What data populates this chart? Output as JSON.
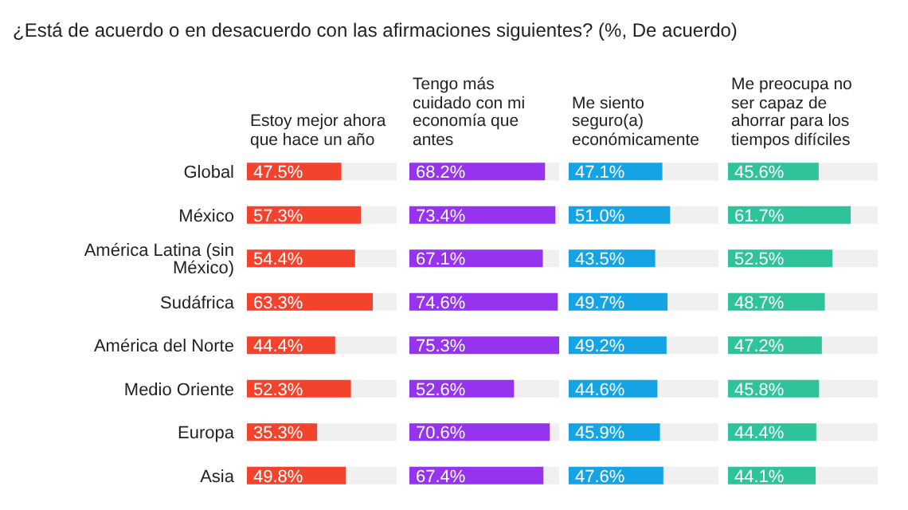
{
  "chart_data": [
    {
      "type": "bar",
      "orientation": "horizontal",
      "subtitle": "¿Está de acuerdo o en desacuerdo con las afirmaciones siguientes? (%, De acuerdo)",
      "title": "Estoy mejor ahora que hace un año",
      "categories": [
        "Global",
        "México",
        "América Latina (sin México)",
        "Sudáfrica",
        "América del Norte",
        "Medio Oriente",
        "Europa",
        "Asia"
      ],
      "values": [
        47.5,
        57.3,
        54.4,
        63.3,
        44.4,
        52.3,
        35.3,
        49.8
      ],
      "value_labels": [
        "47.5%",
        "57.3%",
        "54.4%",
        "63.3%",
        "44.4%",
        "52.3%",
        "35.3%",
        "49.8%"
      ],
      "color": "#f4432c",
      "tick_labels": "y"
    },
    {
      "type": "bar",
      "orientation": "horizontal",
      "title": "Tengo más cuidado con mi economía que antes",
      "values": [
        68.2,
        73.4,
        67.1,
        74.6,
        75.3,
        52.6,
        70.6,
        67.4
      ],
      "value_labels": [
        "68.2%",
        "73.4%",
        "67.1%",
        "74.6%",
        "75.3%",
        "52.6%",
        "70.6%",
        "67.4%"
      ],
      "color": "#9533ef",
      "tick_labels": false
    },
    {
      "type": "bar",
      "orientation": "horizontal",
      "title": "Me siento seguro(a) económicamente",
      "values": [
        47.1,
        51.0,
        43.5,
        49.7,
        49.2,
        44.6,
        45.9,
        47.6
      ],
      "value_labels": [
        "47.1%",
        "51.0%",
        "43.5%",
        "49.7%",
        "49.2%",
        "44.6%",
        "45.9%",
        "47.6%"
      ],
      "color": "#14a4e6",
      "tick_labels": false
    },
    {
      "type": "bar",
      "orientation": "horizontal",
      "title": "Me preocupa no ser capaz de ahorrar para los tiempos difíciles",
      "values": [
        45.6,
        61.7,
        52.5,
        48.7,
        47.2,
        45.8,
        44.4,
        44.1
      ],
      "value_labels": [
        "45.6%",
        "61.7%",
        "52.5%",
        "48.7%",
        "47.2%",
        "45.8%",
        "44.4%",
        "44.1%"
      ],
      "color": "#2ec39b",
      "tick_labels": false
    }
  ]
}
